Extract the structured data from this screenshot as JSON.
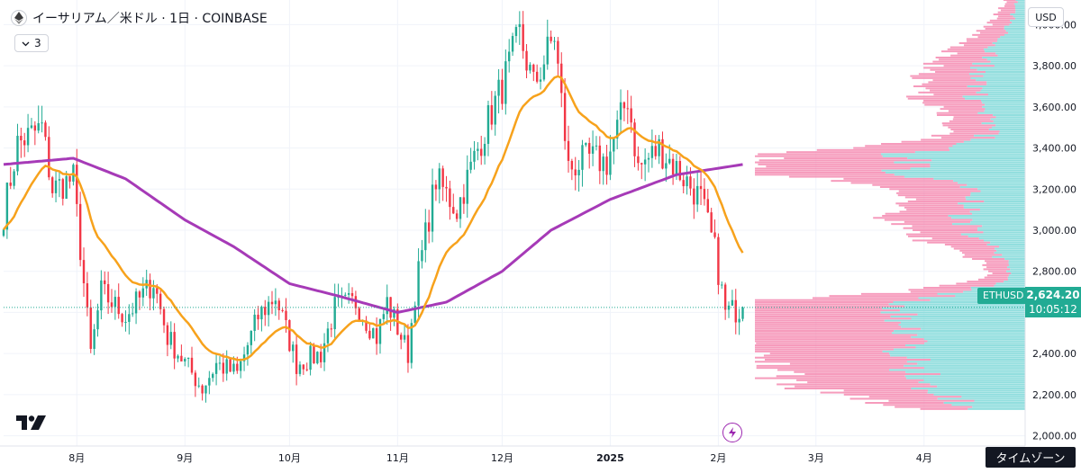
{
  "header": {
    "title": "イーサリアム／米ドル · 1日 · COINBASE",
    "indicator_count": "3"
  },
  "currency": "USD",
  "last_price": {
    "symbol": "ETHUSD",
    "price": "2,624.20",
    "timer": "10:05:12",
    "value": 2624.2
  },
  "timezone_button": "タイムゾーン",
  "colors": {
    "up": "#22ab94",
    "down": "#f23645",
    "ema": "#f7a21c",
    "sma": "#a63ab7",
    "vp_up": "#7fd8d8",
    "vp_down": "#f48ab0",
    "grid": "#f0f3fa",
    "price_line": "#22ab94"
  },
  "icons": [
    "ethereum-icon",
    "chevron-down-icon",
    "tradingview-logo-icon",
    "lightning-bolt-icon"
  ],
  "chart_data": {
    "type": "candlestick",
    "title": "イーサリアム／米ドル · 1日 · COINBASE",
    "ylim": [
      1950,
      4120
    ],
    "y_ticks": [
      2000,
      2200,
      2400,
      2600,
      2800,
      3000,
      3200,
      3400,
      3600,
      3800,
      4000
    ],
    "y_tick_labels": [
      "2,000.00",
      "2,200.00",
      "2,400.00",
      "2,600.00",
      "2,800.00",
      "3,000.00",
      "3,200.00",
      "3,400.00",
      "3,600.00",
      "3,800.00",
      "4,000.00"
    ],
    "x_range": [
      "2024-07-11",
      "2025-04-30"
    ],
    "x_ticks": [
      {
        "date": "2024-08-01",
        "label": "8月"
      },
      {
        "date": "2024-09-01",
        "label": "9月"
      },
      {
        "date": "2024-10-01",
        "label": "10月"
      },
      {
        "date": "2024-11-01",
        "label": "11月"
      },
      {
        "date": "2024-12-01",
        "label": "12月"
      },
      {
        "date": "2025-01-01",
        "label": "2025"
      },
      {
        "date": "2025-02-01",
        "label": "2月"
      },
      {
        "date": "2025-03-01",
        "label": "3月"
      },
      {
        "date": "2025-04-01",
        "label": "4月"
      }
    ],
    "grid": true,
    "close_anchors": [
      [
        "2024-07-11",
        3080
      ],
      [
        "2024-07-15",
        3420
      ],
      [
        "2024-07-22",
        3500
      ],
      [
        "2024-07-25",
        3200
      ],
      [
        "2024-07-31",
        3250
      ],
      [
        "2024-08-05",
        2400
      ],
      [
        "2024-08-08",
        2700
      ],
      [
        "2024-08-15",
        2580
      ],
      [
        "2024-08-23",
        2750
      ],
      [
        "2024-08-27",
        2480
      ],
      [
        "2024-09-06",
        2230
      ],
      [
        "2024-09-10",
        2350
      ],
      [
        "2024-09-16",
        2300
      ],
      [
        "2024-09-22",
        2580
      ],
      [
        "2024-09-27",
        2680
      ],
      [
        "2024-10-03",
        2350
      ],
      [
        "2024-10-10",
        2400
      ],
      [
        "2024-10-14",
        2620
      ],
      [
        "2024-10-20",
        2650
      ],
      [
        "2024-10-26",
        2480
      ],
      [
        "2024-10-29",
        2650
      ],
      [
        "2024-11-04",
        2400
      ],
      [
        "2024-11-06",
        2700
      ],
      [
        "2024-11-12",
        3250
      ],
      [
        "2024-11-18",
        3100
      ],
      [
        "2024-11-23",
        3350
      ],
      [
        "2024-11-28",
        3580
      ],
      [
        "2024-12-01",
        3700
      ],
      [
        "2024-12-06",
        3950
      ],
      [
        "2024-12-10",
        3700
      ],
      [
        "2024-12-16",
        3950
      ],
      [
        "2024-12-20",
        3300
      ],
      [
        "2024-12-26",
        3350
      ],
      [
        "2024-12-31",
        3330
      ],
      [
        "2025-01-06",
        3650
      ],
      [
        "2025-01-09",
        3300
      ],
      [
        "2025-01-15",
        3400
      ],
      [
        "2025-01-20",
        3300
      ],
      [
        "2025-01-27",
        3150
      ],
      [
        "2025-01-31",
        2900
      ],
      [
        "2025-02-03",
        2600
      ],
      [
        "2025-02-08",
        2620
      ]
    ],
    "sma_anchors": [
      [
        "2024-07-11",
        3320
      ],
      [
        "2024-07-31",
        3350
      ],
      [
        "2024-08-15",
        3250
      ],
      [
        "2024-09-01",
        3050
      ],
      [
        "2024-09-15",
        2920
      ],
      [
        "2024-10-01",
        2740
      ],
      [
        "2024-10-15",
        2680
      ],
      [
        "2024-11-01",
        2600
      ],
      [
        "2024-11-15",
        2650
      ],
      [
        "2024-12-01",
        2800
      ],
      [
        "2024-12-15",
        3000
      ],
      [
        "2025-01-01",
        3150
      ],
      [
        "2025-01-20",
        3270
      ],
      [
        "2025-02-08",
        3320
      ]
    ],
    "ema_period": 20,
    "sma_period": 200,
    "volume_profile": {
      "type": "horizontal-histogram",
      "series": [
        "up volume",
        "down volume"
      ],
      "price_range": [
        2130,
        4120
      ],
      "poc_price": 3320
    }
  }
}
